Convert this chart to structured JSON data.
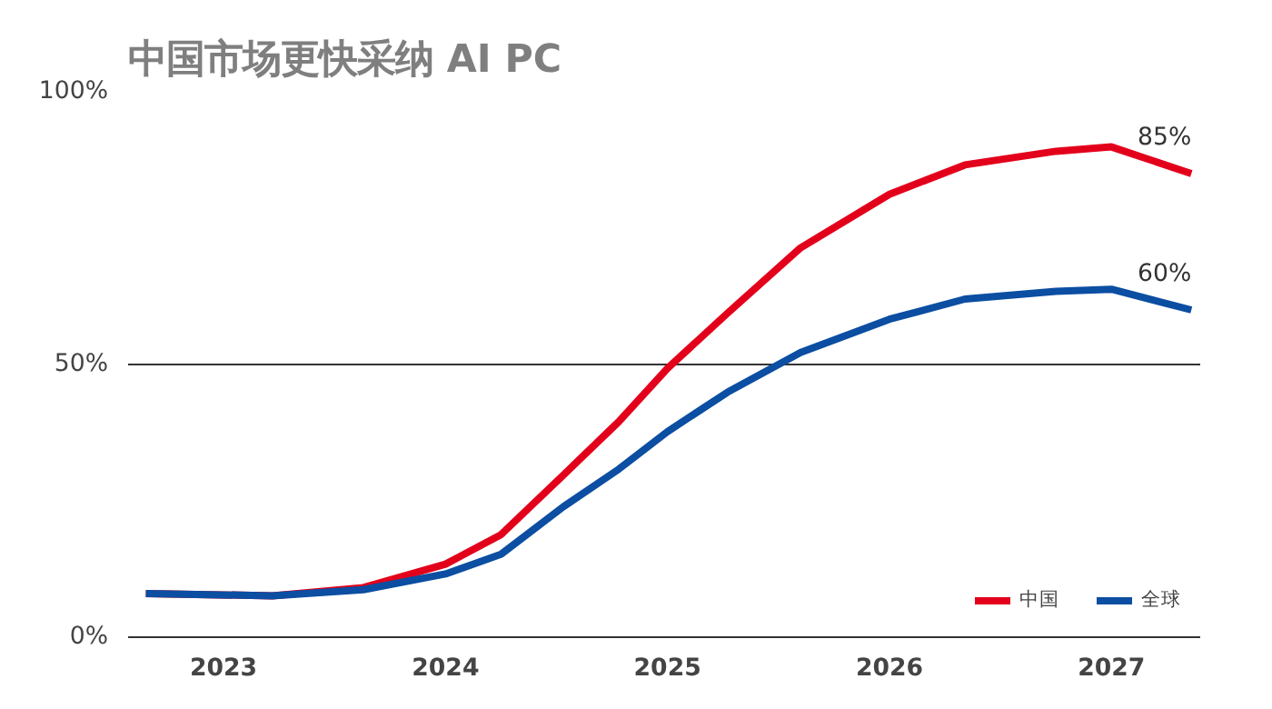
{
  "chart_data": {
    "type": "line",
    "title": "中国市场更快采纳 AI PC",
    "xlim": [
      2022.57,
      2027.4
    ],
    "xticks": [
      2023,
      2024,
      2025,
      2026,
      2027
    ],
    "ylim": [
      0,
      100
    ],
    "yticks": [
      {
        "value": 0,
        "label": "0%"
      },
      {
        "value": 50,
        "label": "50%"
      },
      {
        "value": 100,
        "label": "100%"
      }
    ],
    "grid": "y",
    "legend": "bottom right",
    "marker": "none",
    "line_style": "solid",
    "x": [
      2022.65,
      2023.22,
      2023.63,
      2024,
      2024.25,
      2024.53,
      2024.78,
      2025,
      2025.27,
      2025.6,
      2026,
      2026.34,
      2026.75,
      2027,
      2027.36
    ],
    "series": [
      {
        "name": "中国",
        "color": "#e3001b",
        "values": [
          8.0,
          7.6,
          9.1,
          13.4,
          18.8,
          29.7,
          39.5,
          49.3,
          59.4,
          71.4,
          81.2,
          86.6,
          89.1,
          89.9,
          85
        ],
        "value_labels": [
          null,
          null,
          null,
          null,
          null,
          null,
          null,
          null,
          null,
          null,
          null,
          null,
          null,
          null,
          "85%"
        ]
      },
      {
        "name": "全球",
        "color": "#0b4ea2",
        "values": [
          8.0,
          7.6,
          8.7,
          11.6,
          15.2,
          23.9,
          30.8,
          37.7,
          44.9,
          52.2,
          58.3,
          62.0,
          63.4,
          63.8,
          60
        ],
        "value_labels": [
          null,
          null,
          null,
          null,
          null,
          null,
          null,
          null,
          null,
          null,
          null,
          null,
          null,
          null,
          "60%"
        ]
      }
    ]
  }
}
